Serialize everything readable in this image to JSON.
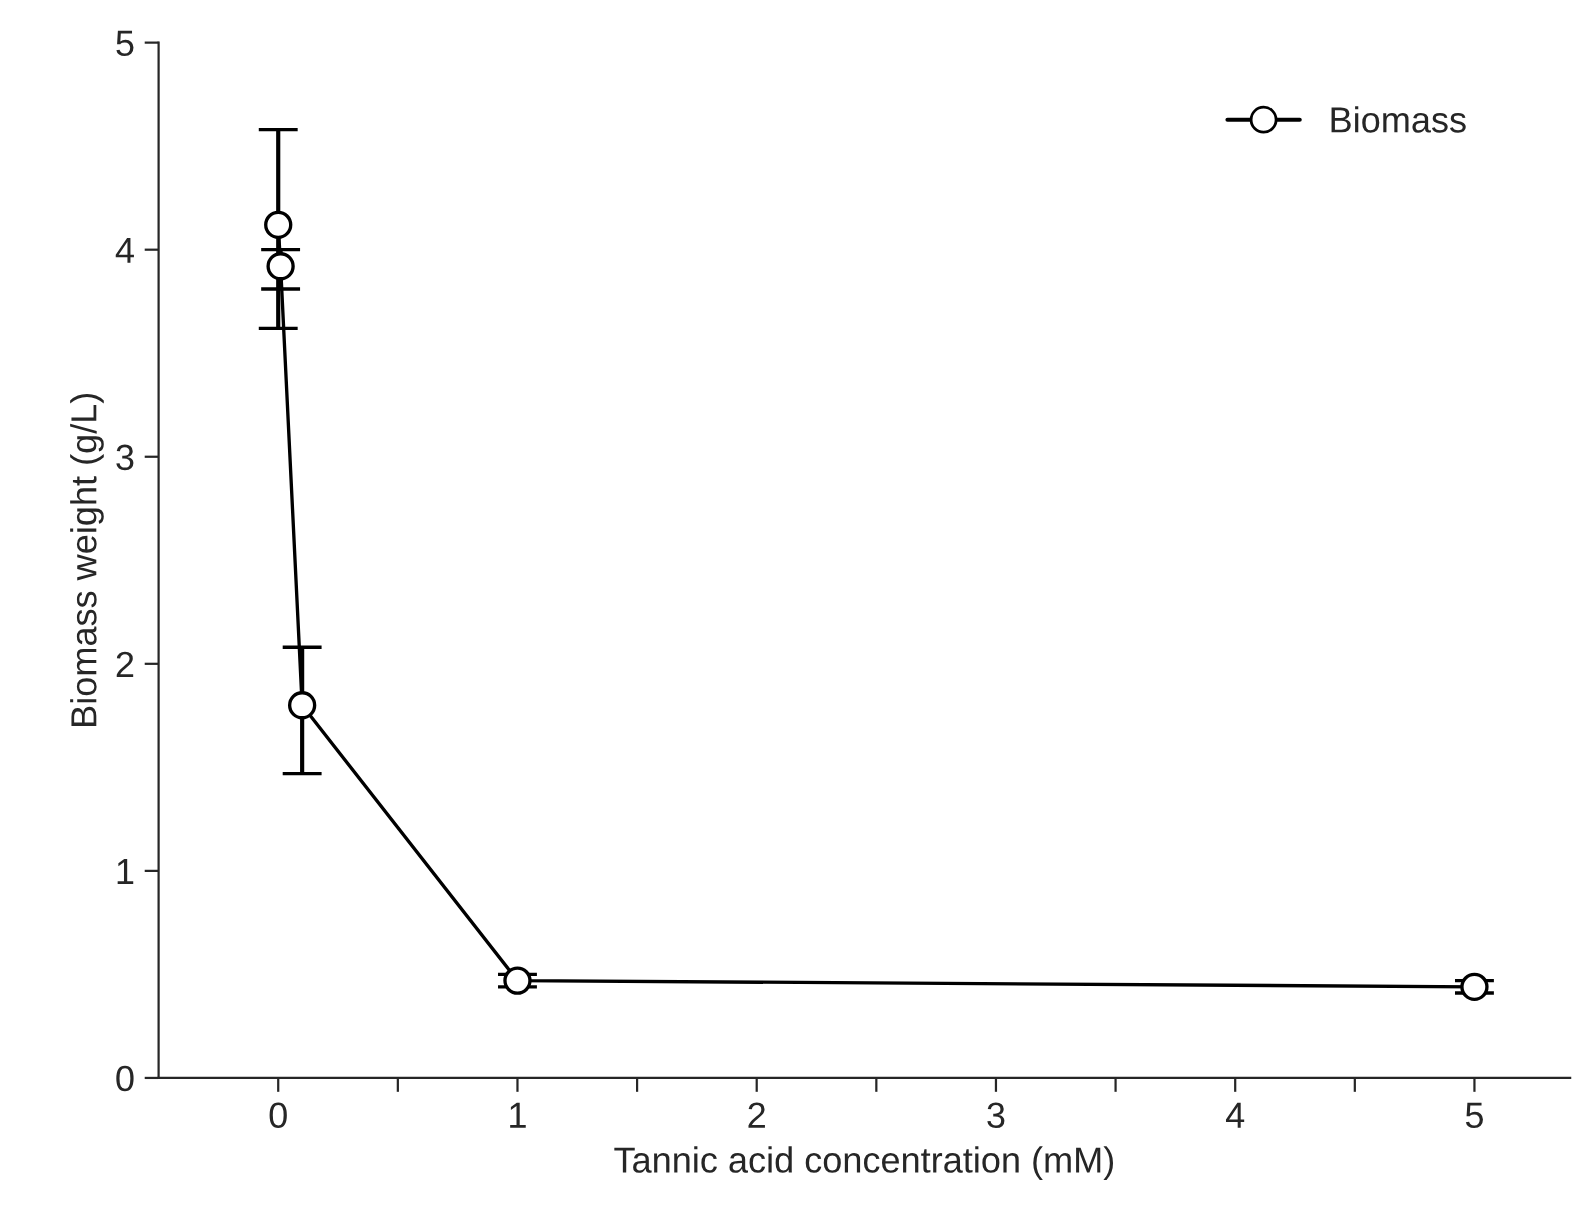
{
  "chart_data": {
    "type": "line",
    "xlabel": "Tannic acid concentration (mM)",
    "ylabel": "Biomass weight (g/L)",
    "x": [
      0,
      0.01,
      0.1,
      1,
      5
    ],
    "series": [
      {
        "name": "Biomass",
        "color": "#000000",
        "values": [
          4.12,
          3.92,
          1.8,
          0.47,
          0.44
        ],
        "errors": [
          [
            3.62,
            4.58
          ],
          [
            3.81,
            4.0
          ],
          [
            1.47,
            2.08
          ],
          [
            0.44,
            0.5
          ],
          [
            0.41,
            0.47
          ]
        ]
      }
    ],
    "marker": "circle",
    "line_style": "solid",
    "legend": "top right",
    "grid": false,
    "xlim": [
      -0.5,
      5.4
    ],
    "ylim": [
      0,
      5
    ],
    "xticks": [
      0,
      {
        "value": 0.5,
        "label": null
      },
      1,
      {
        "value": 1.5,
        "label": null
      },
      2,
      {
        "value": 2.5,
        "label": null
      },
      3,
      {
        "value": 3.5,
        "label": null
      },
      4,
      {
        "value": 4.5,
        "label": null
      },
      5
    ],
    "yticks": [
      0,
      1,
      2,
      3,
      4,
      5
    ]
  }
}
